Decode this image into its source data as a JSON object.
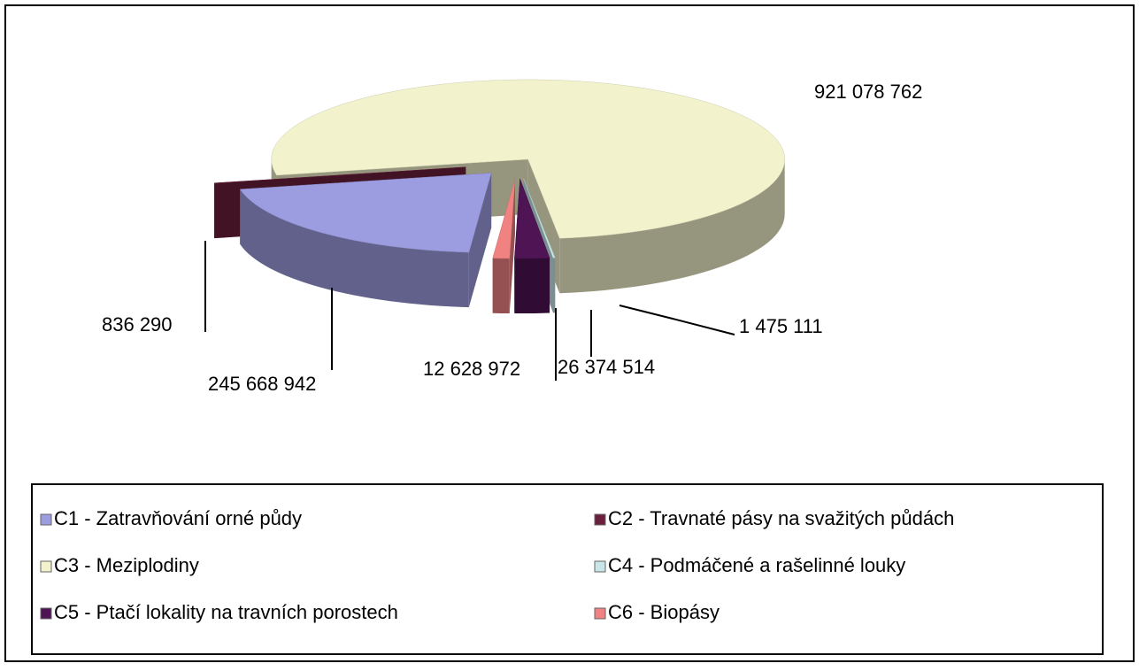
{
  "chart_data": {
    "type": "pie3d",
    "categories": [
      "C1 - Zatravňování orné půdy",
      "C2 - Travnaté pásy na svažitých půdách",
      "C3 - Meziplodiny",
      "C4 - Podmáčené a rašelinné louky",
      "C5 - Ptačí lokality na travních porostech",
      "C6 - Biopásy"
    ],
    "values": [
      245668942,
      836290,
      921078762,
      1475111,
      26374514,
      12628972
    ],
    "value_labels": [
      "245 668 942",
      "836 290",
      "921 078 762",
      "1 475 111",
      "26 374 514",
      "12 628 972"
    ],
    "colors": [
      "#9c9ce0",
      "#6a1f3c",
      "#f2f2cc",
      "#c8e6e8",
      "#4e1454",
      "#f08282"
    ],
    "legend": "bottom"
  }
}
